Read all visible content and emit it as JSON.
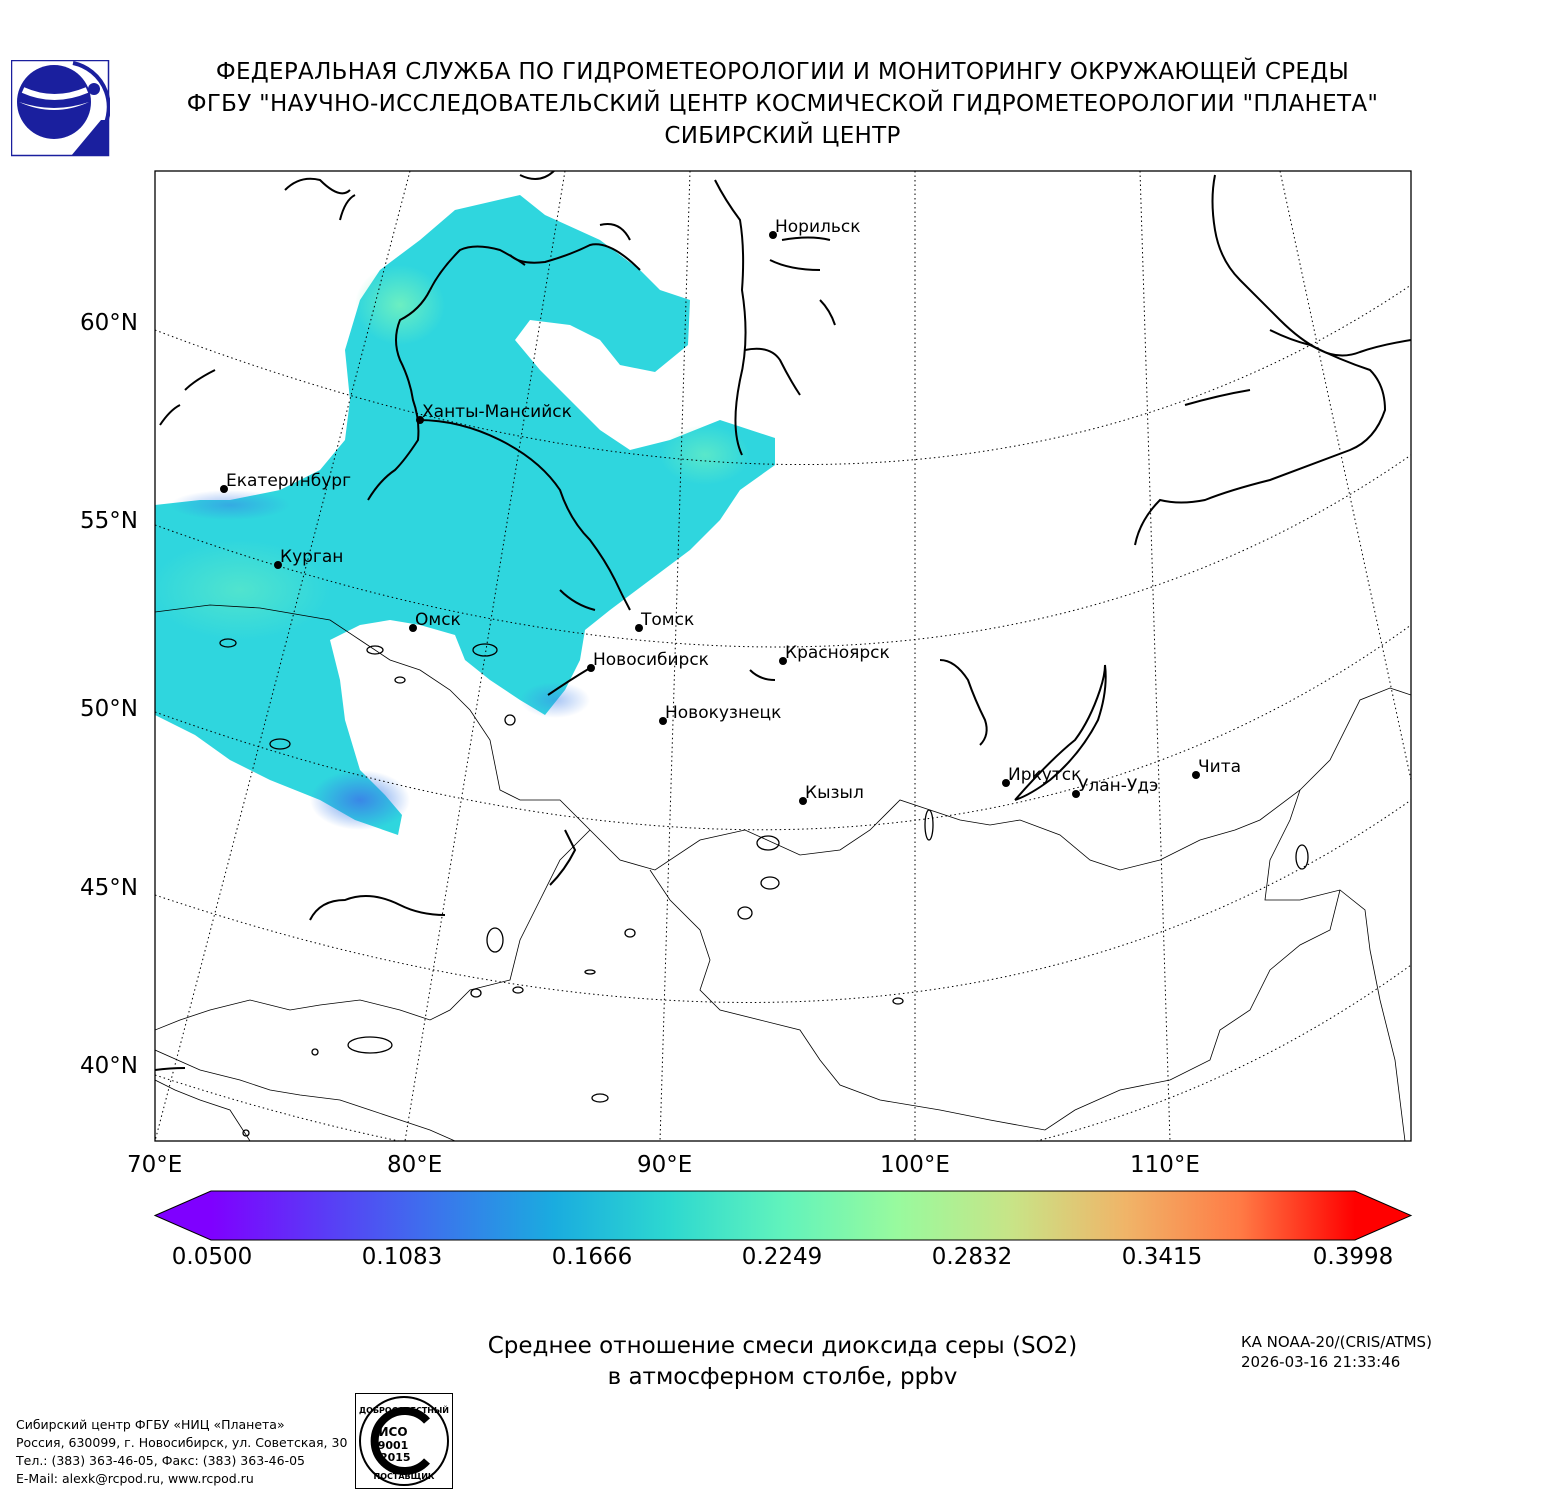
{
  "header": {
    "line1": "ФЕДЕРАЛЬНАЯ СЛУЖБА ПО ГИДРОМЕТЕОРОЛОГИИ И МОНИТОРИНГУ ОКРУЖАЮЩЕЙ СРЕДЫ",
    "line2": "ФГБУ \"НАУЧНО-ИССЛЕДОВАТЕЛЬСКИЙ ЦЕНТР КОСМИЧЕСКОЙ ГИДРОМЕТЕОРОЛОГИИ \"ПЛАНЕТА\"",
    "line3": "СИБИРСКИЙ ЦЕНТР"
  },
  "map": {
    "lat_labels": [
      "60°N",
      "55°N",
      "50°N",
      "45°N",
      "40°N"
    ],
    "lon_labels": [
      "70°E",
      "80°E",
      "90°E",
      "100°E",
      "110°E"
    ],
    "cities": [
      "Норильск",
      "Ханты-Мансийск",
      "Екатеринбург",
      "Курган",
      "Омск",
      "Томск",
      "Новосибирск",
      "Красноярск",
      "Новокузнецк",
      "Кызыл",
      "Иркутск",
      "Улан-Удэ",
      "Чита"
    ],
    "colors": {
      "plume_main": "#2fd6de",
      "plume_high": "#6ff0c0",
      "plume_low": "#3b7ee8"
    }
  },
  "colorbar": {
    "ticks": [
      "0.0500",
      "0.1083",
      "0.1666",
      "0.2249",
      "0.2832",
      "0.3415",
      "0.3998"
    ],
    "colors": [
      "#7f00ff",
      "#5a3cf6",
      "#3a76ec",
      "#1aacdf",
      "#2dd8d0",
      "#61f3bc",
      "#98fa9e",
      "#c8e487",
      "#f0b468",
      "#ff7a45",
      "#ff3a1f",
      "#ff0000"
    ]
  },
  "title": {
    "line1": "Среднее отношение смеси диоксида серы (SO2)",
    "line2": "в атмосферном столбе, ppbv"
  },
  "satellite": {
    "name": "КА NOAA-20/(CRIS/ATMS)",
    "datetime": "2026-03-16 21:33:46"
  },
  "footer": {
    "org": "Сибирский центр ФГБУ «НИЦ «Планета»",
    "address": "Россия, 630099, г. Новосибирск, ул. Советская, 30",
    "phone": "Тел.: (383) 363-46-05, Факс: (383) 363-46-05",
    "email": "E-Mail: alexk@rcpod.ru, www.rcpod.ru"
  },
  "iso_badge": {
    "top": "ДОБРОСОВЕСТНЫЙ",
    "l1": "ИСО",
    "l2": "9001",
    "l3": "-2015",
    "bottom": "ПОСТАВЩИК"
  }
}
